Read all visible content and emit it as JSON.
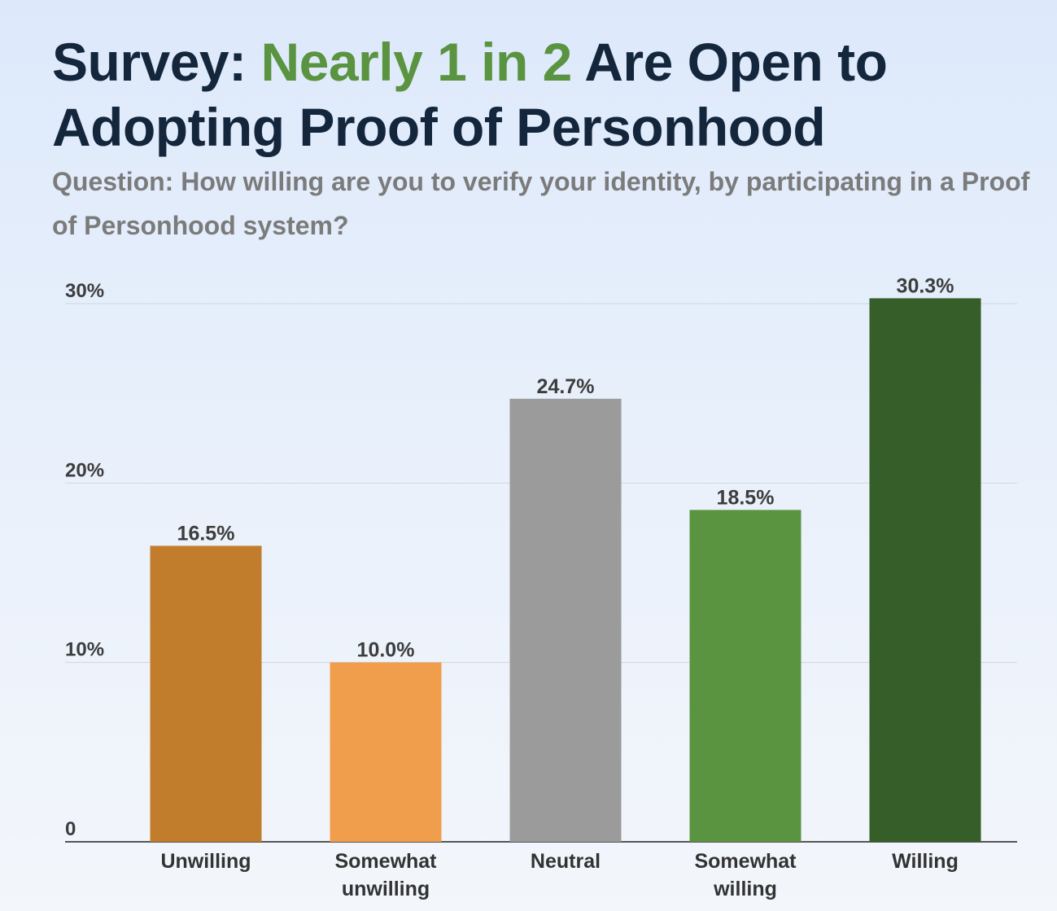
{
  "title": {
    "prefix": "Survey: ",
    "highlight": "Nearly 1 in 2",
    "suffix": " Are Open to Adopting Proof of Personhood",
    "highlight_color": "#5a9441"
  },
  "subtitle": "Question: How willing are you to verify your identity, by participating in a Proof of Personhood system?",
  "chart_data": {
    "type": "bar",
    "title": "Survey: Nearly 1 in 2 Are Open to Adopting Proof of Personhood",
    "subtitle": "Question: How willing are you to verify your identity, by participating in a Proof of Personhood system?",
    "categories": [
      "Unwilling",
      "Somewhat unwilling",
      "Neutral",
      "Somewhat willing",
      "Willing"
    ],
    "category_lines": [
      [
        "Unwilling"
      ],
      [
        "Somewhat",
        "unwilling"
      ],
      [
        "Neutral"
      ],
      [
        "Somewhat",
        "willing"
      ],
      [
        "Willing"
      ]
    ],
    "values": [
      16.5,
      10.0,
      24.7,
      18.5,
      30.3
    ],
    "value_labels": [
      "16.5%",
      "10.0%",
      "24.7%",
      "18.5%",
      "30.3%"
    ],
    "colors": [
      "#c17d2b",
      "#f09e4b",
      "#9b9b9b",
      "#5a9441",
      "#365e29"
    ],
    "xlabel": "",
    "ylabel": "",
    "ylim": [
      0,
      30
    ],
    "yticks": [
      0,
      10,
      20,
      30
    ],
    "ytick_labels": [
      "0",
      "10%",
      "20%",
      "30%"
    ],
    "grid": true
  }
}
